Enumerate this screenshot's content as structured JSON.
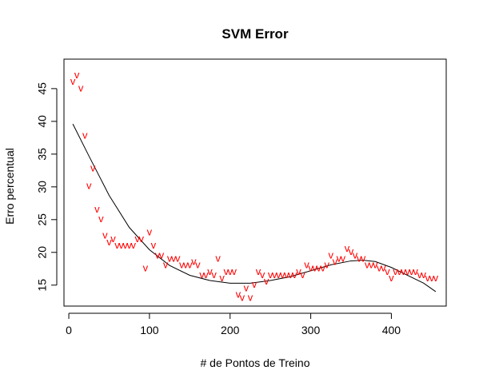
{
  "chart_data": {
    "type": "scatter",
    "title": "SVM Error",
    "xlabel": "# de Pontos de Treino",
    "ylabel": "Erro percentual",
    "xlim": [
      -6,
      468
    ],
    "ylim": [
      11.8,
      49.5
    ],
    "x_ticks": [
      0,
      100,
      200,
      300,
      400
    ],
    "y_ticks": [
      15,
      20,
      25,
      30,
      35,
      40,
      45
    ],
    "marker_symbol": "v",
    "marker_color": "#ff0000",
    "fit_color": "#000000",
    "grid": false,
    "legend": "none",
    "series": [
      {
        "type": "scatter",
        "points": [
          [
            5,
            46.0
          ],
          [
            10,
            47.0
          ],
          [
            15,
            45.0
          ],
          [
            20,
            37.8
          ],
          [
            25,
            30.1
          ],
          [
            30,
            32.8
          ],
          [
            35,
            26.5
          ],
          [
            40,
            25.0
          ],
          [
            45,
            22.5
          ],
          [
            50,
            21.5
          ],
          [
            55,
            22.0
          ],
          [
            60,
            21.0
          ],
          [
            65,
            21.0
          ],
          [
            70,
            21.0
          ],
          [
            75,
            21.0
          ],
          [
            80,
            21.0
          ],
          [
            85,
            22.0
          ],
          [
            90,
            22.0
          ],
          [
            95,
            17.5
          ],
          [
            100,
            23.0
          ],
          [
            105,
            21.0
          ],
          [
            110,
            19.5
          ],
          [
            115,
            19.5
          ],
          [
            120,
            18.0
          ],
          [
            125,
            19.0
          ],
          [
            130,
            19.0
          ],
          [
            135,
            19.0
          ],
          [
            140,
            18.0
          ],
          [
            145,
            18.0
          ],
          [
            150,
            18.0
          ],
          [
            155,
            18.5
          ],
          [
            160,
            18.0
          ],
          [
            165,
            16.5
          ],
          [
            170,
            16.5
          ],
          [
            175,
            17.0
          ],
          [
            180,
            16.5
          ],
          [
            185,
            19.0
          ],
          [
            190,
            16.0
          ],
          [
            195,
            17.0
          ],
          [
            200,
            17.0
          ],
          [
            205,
            17.0
          ],
          [
            210,
            13.5
          ],
          [
            215,
            13.0
          ],
          [
            220,
            14.5
          ],
          [
            225,
            13.0
          ],
          [
            230,
            15.0
          ],
          [
            235,
            17.0
          ],
          [
            240,
            16.5
          ],
          [
            245,
            15.5
          ],
          [
            250,
            16.5
          ],
          [
            255,
            16.5
          ],
          [
            260,
            16.5
          ],
          [
            265,
            16.5
          ],
          [
            270,
            16.5
          ],
          [
            275,
            16.5
          ],
          [
            280,
            16.5
          ],
          [
            285,
            17.0
          ],
          [
            290,
            16.5
          ],
          [
            295,
            18.0
          ],
          [
            300,
            17.5
          ],
          [
            305,
            17.5
          ],
          [
            310,
            17.5
          ],
          [
            315,
            17.5
          ],
          [
            320,
            18.0
          ],
          [
            325,
            19.5
          ],
          [
            330,
            18.5
          ],
          [
            335,
            19.0
          ],
          [
            340,
            19.0
          ],
          [
            345,
            20.5
          ],
          [
            350,
            20.0
          ],
          [
            355,
            19.5
          ],
          [
            360,
            19.0
          ],
          [
            365,
            19.0
          ],
          [
            370,
            18.0
          ],
          [
            375,
            18.0
          ],
          [
            380,
            18.0
          ],
          [
            385,
            17.5
          ],
          [
            390,
            17.5
          ],
          [
            395,
            17.0
          ],
          [
            400,
            16.0
          ],
          [
            405,
            17.0
          ],
          [
            410,
            17.0
          ],
          [
            415,
            17.0
          ],
          [
            420,
            17.0
          ],
          [
            425,
            17.0
          ],
          [
            430,
            17.0
          ],
          [
            435,
            16.5
          ],
          [
            440,
            16.5
          ],
          [
            445,
            16.0
          ],
          [
            450,
            16.0
          ],
          [
            455,
            16.0
          ]
        ]
      },
      {
        "type": "line",
        "points": [
          [
            5,
            39.6
          ],
          [
            25,
            34.7
          ],
          [
            50,
            28.7
          ],
          [
            75,
            23.8
          ],
          [
            100,
            20.4
          ],
          [
            125,
            18.0
          ],
          [
            150,
            16.5
          ],
          [
            175,
            15.7
          ],
          [
            200,
            15.3
          ],
          [
            225,
            15.3
          ],
          [
            250,
            15.7
          ],
          [
            275,
            16.3
          ],
          [
            300,
            17.2
          ],
          [
            325,
            18.1
          ],
          [
            350,
            18.7
          ],
          [
            365,
            18.8
          ],
          [
            380,
            18.6
          ],
          [
            400,
            17.7
          ],
          [
            425,
            16.2
          ],
          [
            440,
            15.3
          ],
          [
            455,
            14.0
          ]
        ]
      }
    ]
  }
}
